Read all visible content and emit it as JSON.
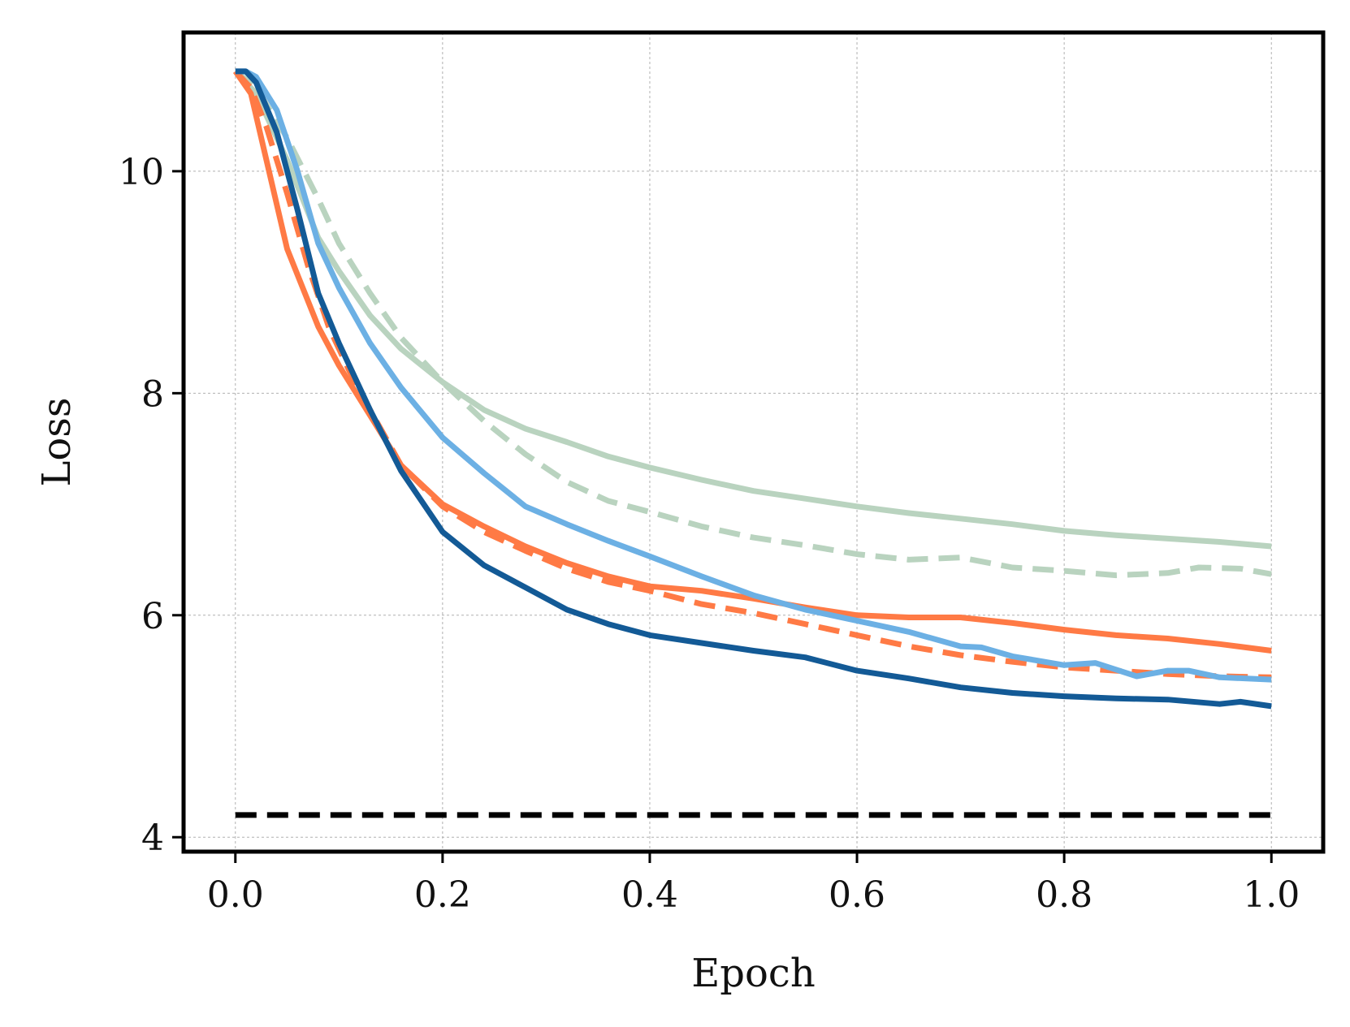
{
  "chart_data": {
    "type": "line",
    "title": "",
    "xlabel": "Epoch",
    "ylabel": "Loss",
    "xlim": [
      -0.05,
      1.05
    ],
    "ylim": [
      3.87,
      11.25
    ],
    "xticks": [
      0.0,
      0.2,
      0.4,
      0.6,
      0.8,
      1.0
    ],
    "xtick_labels": [
      "0.0",
      "0.2",
      "0.4",
      "0.6",
      "0.8",
      "1.0"
    ],
    "yticks": [
      4,
      6,
      8,
      10
    ],
    "ytick_labels": [
      "4",
      "6",
      "8",
      "10"
    ],
    "grid": true,
    "legend": "none",
    "series": [
      {
        "color": "#b9d3bf",
        "style": "solid",
        "x": [
          0.0,
          0.02,
          0.05,
          0.08,
          0.1,
          0.13,
          0.16,
          0.2,
          0.24,
          0.28,
          0.32,
          0.36,
          0.4,
          0.45,
          0.5,
          0.55,
          0.6,
          0.65,
          0.7,
          0.75,
          0.8,
          0.85,
          0.9,
          0.95,
          1.0
        ],
        "y": [
          10.9,
          10.7,
          10.1,
          9.4,
          9.1,
          8.7,
          8.4,
          8.1,
          7.85,
          7.68,
          7.56,
          7.43,
          7.33,
          7.22,
          7.12,
          7.05,
          6.98,
          6.92,
          6.87,
          6.82,
          6.76,
          6.72,
          6.69,
          6.66,
          6.62
        ]
      },
      {
        "color": "#b9d3bf",
        "style": "dashed",
        "x": [
          0.0,
          0.02,
          0.05,
          0.08,
          0.1,
          0.13,
          0.16,
          0.2,
          0.24,
          0.28,
          0.32,
          0.36,
          0.4,
          0.45,
          0.5,
          0.55,
          0.6,
          0.65,
          0.7,
          0.75,
          0.8,
          0.85,
          0.9,
          0.93,
          0.97,
          1.0
        ],
        "y": [
          10.9,
          10.75,
          10.3,
          9.75,
          9.35,
          8.9,
          8.5,
          8.1,
          7.75,
          7.45,
          7.2,
          7.03,
          6.93,
          6.8,
          6.7,
          6.63,
          6.55,
          6.5,
          6.52,
          6.43,
          6.4,
          6.36,
          6.38,
          6.43,
          6.42,
          6.37
        ]
      },
      {
        "color": "#ff7a45",
        "style": "solid",
        "x": [
          0.0,
          0.015,
          0.03,
          0.05,
          0.08,
          0.1,
          0.13,
          0.16,
          0.2,
          0.24,
          0.28,
          0.32,
          0.36,
          0.4,
          0.45,
          0.5,
          0.55,
          0.6,
          0.65,
          0.7,
          0.75,
          0.8,
          0.85,
          0.9,
          0.95,
          1.0
        ],
        "y": [
          10.9,
          10.7,
          10.1,
          9.3,
          8.6,
          8.25,
          7.8,
          7.35,
          7.0,
          6.8,
          6.62,
          6.47,
          6.35,
          6.26,
          6.22,
          6.15,
          6.07,
          6.0,
          5.98,
          5.98,
          5.93,
          5.87,
          5.82,
          5.79,
          5.74,
          5.68
        ]
      },
      {
        "color": "#ff7a45",
        "style": "dashed",
        "x": [
          0.0,
          0.015,
          0.03,
          0.05,
          0.07,
          0.09,
          0.11,
          0.13,
          0.16,
          0.2,
          0.24,
          0.28,
          0.32,
          0.36,
          0.4,
          0.45,
          0.5,
          0.55,
          0.6,
          0.65,
          0.7,
          0.75,
          0.8,
          0.85,
          0.9,
          0.95,
          1.0
        ],
        "y": [
          10.9,
          10.75,
          10.4,
          9.8,
          9.15,
          8.6,
          8.2,
          7.85,
          7.35,
          6.98,
          6.75,
          6.58,
          6.42,
          6.3,
          6.22,
          6.1,
          6.02,
          5.92,
          5.82,
          5.72,
          5.64,
          5.58,
          5.53,
          5.5,
          5.47,
          5.45,
          5.44
        ]
      },
      {
        "color": "#6cb0e4",
        "style": "solid",
        "x": [
          0.0,
          0.01,
          0.02,
          0.04,
          0.06,
          0.08,
          0.1,
          0.13,
          0.16,
          0.2,
          0.24,
          0.28,
          0.32,
          0.36,
          0.4,
          0.45,
          0.5,
          0.55,
          0.6,
          0.65,
          0.7,
          0.72,
          0.75,
          0.8,
          0.83,
          0.87,
          0.9,
          0.92,
          0.95,
          1.0
        ],
        "y": [
          10.9,
          10.9,
          10.85,
          10.55,
          10.0,
          9.35,
          8.95,
          8.45,
          8.05,
          7.6,
          7.28,
          6.98,
          6.82,
          6.67,
          6.53,
          6.35,
          6.18,
          6.05,
          5.95,
          5.85,
          5.72,
          5.71,
          5.63,
          5.55,
          5.57,
          5.45,
          5.5,
          5.5,
          5.44,
          5.42
        ]
      },
      {
        "color": "#135a96",
        "style": "solid",
        "x": [
          0.0,
          0.01,
          0.02,
          0.04,
          0.06,
          0.08,
          0.1,
          0.13,
          0.16,
          0.2,
          0.24,
          0.28,
          0.32,
          0.36,
          0.4,
          0.45,
          0.5,
          0.55,
          0.6,
          0.65,
          0.7,
          0.75,
          0.8,
          0.85,
          0.9,
          0.95,
          0.97,
          1.0
        ],
        "y": [
          10.9,
          10.9,
          10.8,
          10.35,
          9.65,
          8.9,
          8.45,
          7.85,
          7.3,
          6.75,
          6.45,
          6.25,
          6.05,
          5.92,
          5.82,
          5.75,
          5.68,
          5.62,
          5.5,
          5.43,
          5.35,
          5.3,
          5.27,
          5.25,
          5.24,
          5.2,
          5.22,
          5.18
        ]
      },
      {
        "color": "#000000",
        "style": "dashed",
        "x": [
          0.0,
          1.0
        ],
        "y": [
          4.2,
          4.2
        ]
      }
    ]
  }
}
